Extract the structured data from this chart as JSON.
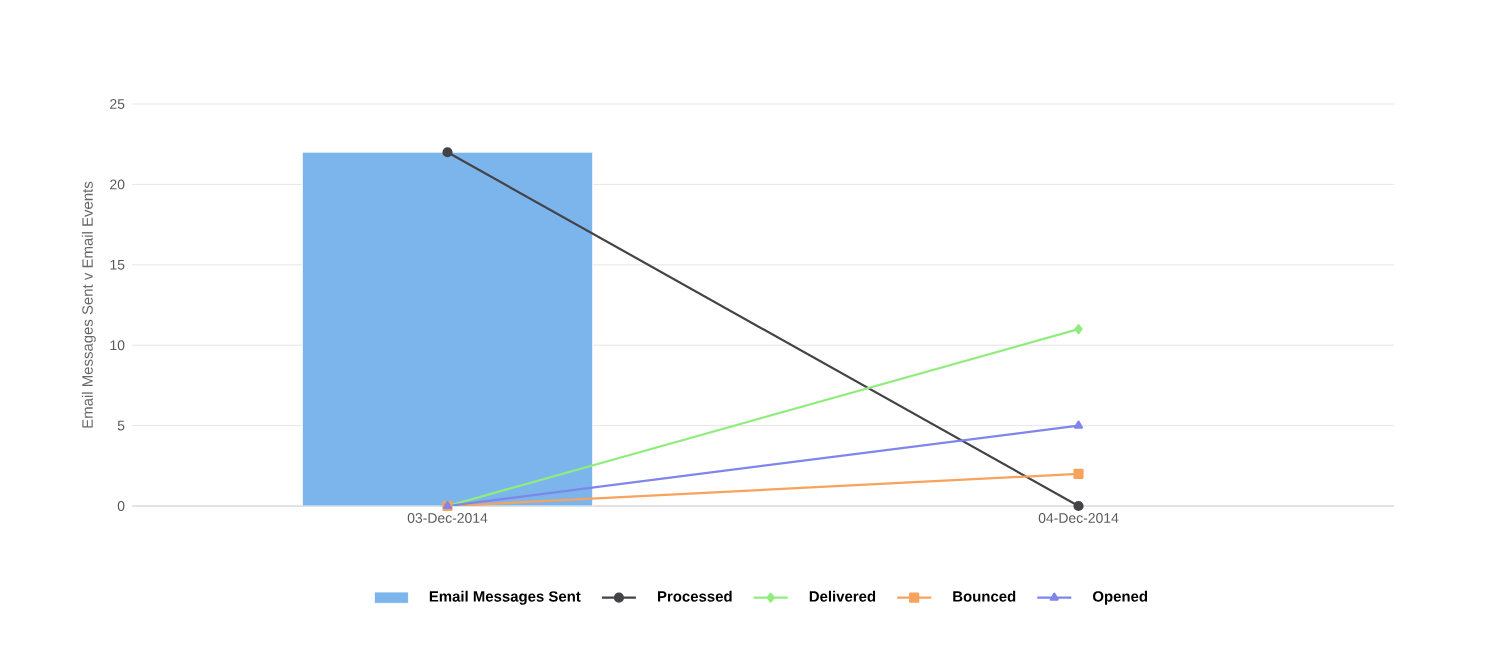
{
  "chart_data": {
    "type": "bar",
    "ylabel": "Email Messages Sent v Email Events",
    "categories": [
      "03-Dec-2014",
      "04-Dec-2014"
    ],
    "series": [
      {
        "name": "Email Messages Sent",
        "color": "#7cb5ec",
        "values": [
          22,
          null
        ]
      },
      {
        "name": "Processed",
        "type": "line",
        "color": "#434348",
        "marker": "circle",
        "values": [
          22,
          0
        ]
      },
      {
        "name": "Delivered",
        "type": "line",
        "color": "#90ed7d",
        "marker": "diamond",
        "values": [
          0,
          11
        ]
      },
      {
        "name": "Bounced",
        "type": "line",
        "color": "#f7a35c",
        "marker": "square",
        "values": [
          0,
          2
        ]
      },
      {
        "name": "Opened",
        "type": "line",
        "color": "#8085e9",
        "marker": "triangle",
        "values": [
          0,
          5
        ]
      }
    ],
    "ylim": [
      0,
      25
    ],
    "yticks": [
      0,
      5,
      10,
      15,
      20,
      25
    ],
    "grid": "y",
    "legend": "bottom",
    "line_style": "solid"
  }
}
